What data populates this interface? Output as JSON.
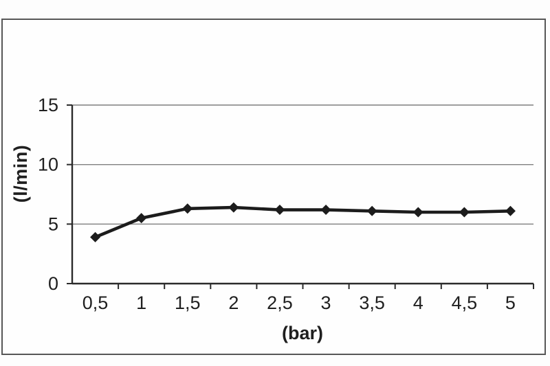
{
  "axis_titles": {
    "y": "(l/min)",
    "x": "(bar)"
  },
  "chart_data": {
    "type": "line",
    "title": "",
    "xlabel": "(bar)",
    "ylabel": "(l/min)",
    "x": [
      0.5,
      1,
      1.5,
      2,
      2.5,
      3,
      3.5,
      4,
      4.5,
      5
    ],
    "x_tick_labels": [
      "0,5",
      "1",
      "1,5",
      "2",
      "2,5",
      "3",
      "3,5",
      "4",
      "4,5",
      "5"
    ],
    "values": [
      3.9,
      5.5,
      6.3,
      6.4,
      6.2,
      6.2,
      6.1,
      6.0,
      6.0,
      6.1
    ],
    "y_ticks": [
      0,
      5,
      10,
      15
    ],
    "y_tick_labels": [
      "0",
      "5",
      "10",
      "15"
    ],
    "ylim": [
      0,
      15
    ],
    "grid": "horizontal",
    "legend": "none",
    "marker": "diamond",
    "colors": {
      "line": "#1c1c1c",
      "marker": "#1c1c1c",
      "axis": "#2a2a2a",
      "gridline": "#7f7f7f",
      "text": "#1f1f1f",
      "frame_border": "#565656",
      "background": "#fdfdfd"
    }
  }
}
